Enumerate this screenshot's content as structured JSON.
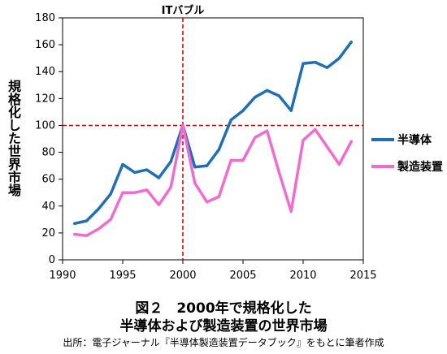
{
  "chart_data": {
    "type": "line",
    "title": "",
    "xlabel": "",
    "ylabel": "規格化した世界市場",
    "xlim": [
      1990,
      2015
    ],
    "ylim": [
      0,
      180
    ],
    "x_ticks": [
      "1990",
      "1995",
      "2000",
      "2005",
      "2010",
      "2015"
    ],
    "y_ticks": [
      "0",
      "20",
      "40",
      "60",
      "80",
      "100",
      "120",
      "140",
      "160",
      "180"
    ],
    "grid": false,
    "legend_position": "right",
    "series": [
      {
        "name": "半導体",
        "color": "#1f6fb5",
        "x": [
          1991,
          1992,
          1993,
          1994,
          1995,
          1996,
          1997,
          1998,
          1999,
          2000,
          2001,
          2002,
          2003,
          2004,
          2005,
          2006,
          2007,
          2008,
          2009,
          2010,
          2011,
          2012,
          2013,
          2014
        ],
        "values": [
          27,
          29,
          38,
          49,
          71,
          65,
          67,
          61,
          73,
          100,
          69,
          70,
          82,
          104,
          111,
          121,
          126,
          122,
          111,
          146,
          147,
          143,
          150,
          162
        ]
      },
      {
        "name": "製造装置",
        "color": "#f16bd0",
        "x": [
          1991,
          1992,
          1993,
          1994,
          1995,
          1996,
          1997,
          1998,
          1999,
          2000,
          2001,
          2002,
          2003,
          2004,
          2005,
          2006,
          2007,
          2008,
          2009,
          2010,
          2011,
          2012,
          2013,
          2014
        ],
        "values": [
          19,
          18,
          23,
          30,
          50,
          50,
          52,
          41,
          54,
          100,
          57,
          43,
          47,
          74,
          74,
          91,
          96,
          65,
          36,
          89,
          97,
          84,
          71,
          88
        ]
      }
    ],
    "reference_lines": [
      {
        "axis": "y",
        "value": 100,
        "color": "#cc0000",
        "style": "dashed"
      },
      {
        "axis": "x",
        "value": 2000,
        "color": "#cc0000",
        "style": "dashed",
        "label": "ITバブル"
      }
    ]
  },
  "caption": {
    "line1": "図２　2000年で規格化した",
    "line2": "半導体および製造装置の世界市場"
  },
  "source_note": "出所：電子ジャーナル『半導体製造装置データブック』をもとに筆者作成"
}
